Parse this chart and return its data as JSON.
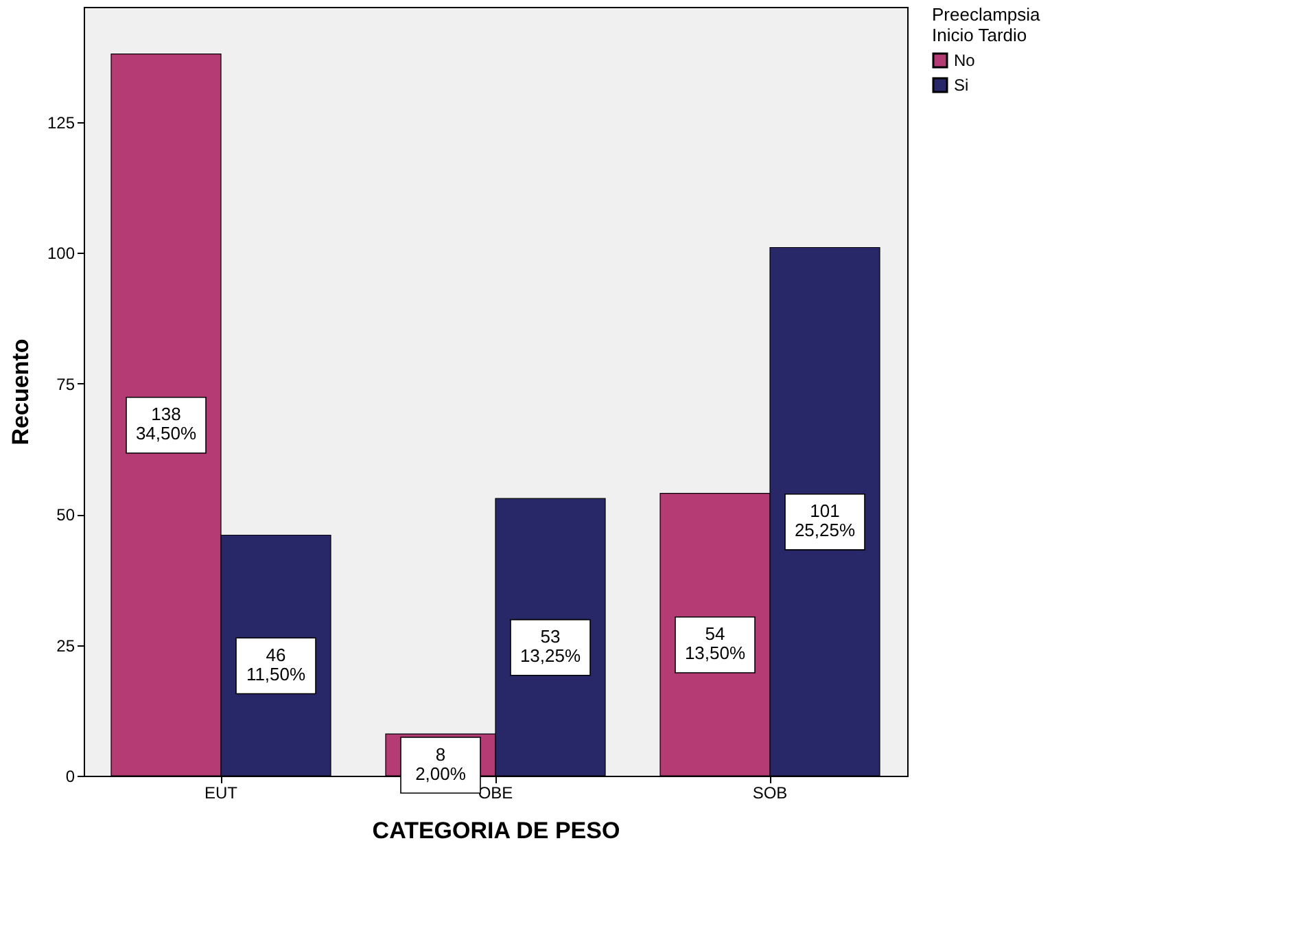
{
  "chart_data": {
    "type": "bar",
    "xlabel": "CATEGORIA DE PESO",
    "ylabel": "Recuento",
    "legend_title": "Preeclampsia\nInicio Tardio",
    "categories": [
      "EUT",
      "OBE",
      "SOB"
    ],
    "series": [
      {
        "name": "No",
        "color": "#b43b74",
        "values": [
          138,
          8,
          54
        ],
        "value_labels": [
          "138\n34,50%",
          "8\n2,00%",
          "54\n13,50%"
        ]
      },
      {
        "name": "Si",
        "color": "#282868",
        "values": [
          46,
          53,
          101
        ],
        "value_labels": [
          "46\n11,50%",
          "53\n13,25%",
          "101\n25,25%"
        ]
      }
    ],
    "ylim": [
      0,
      147
    ],
    "yticks": [
      0,
      25,
      50,
      75,
      100,
      125
    ],
    "grid": false,
    "legend": "top right"
  }
}
